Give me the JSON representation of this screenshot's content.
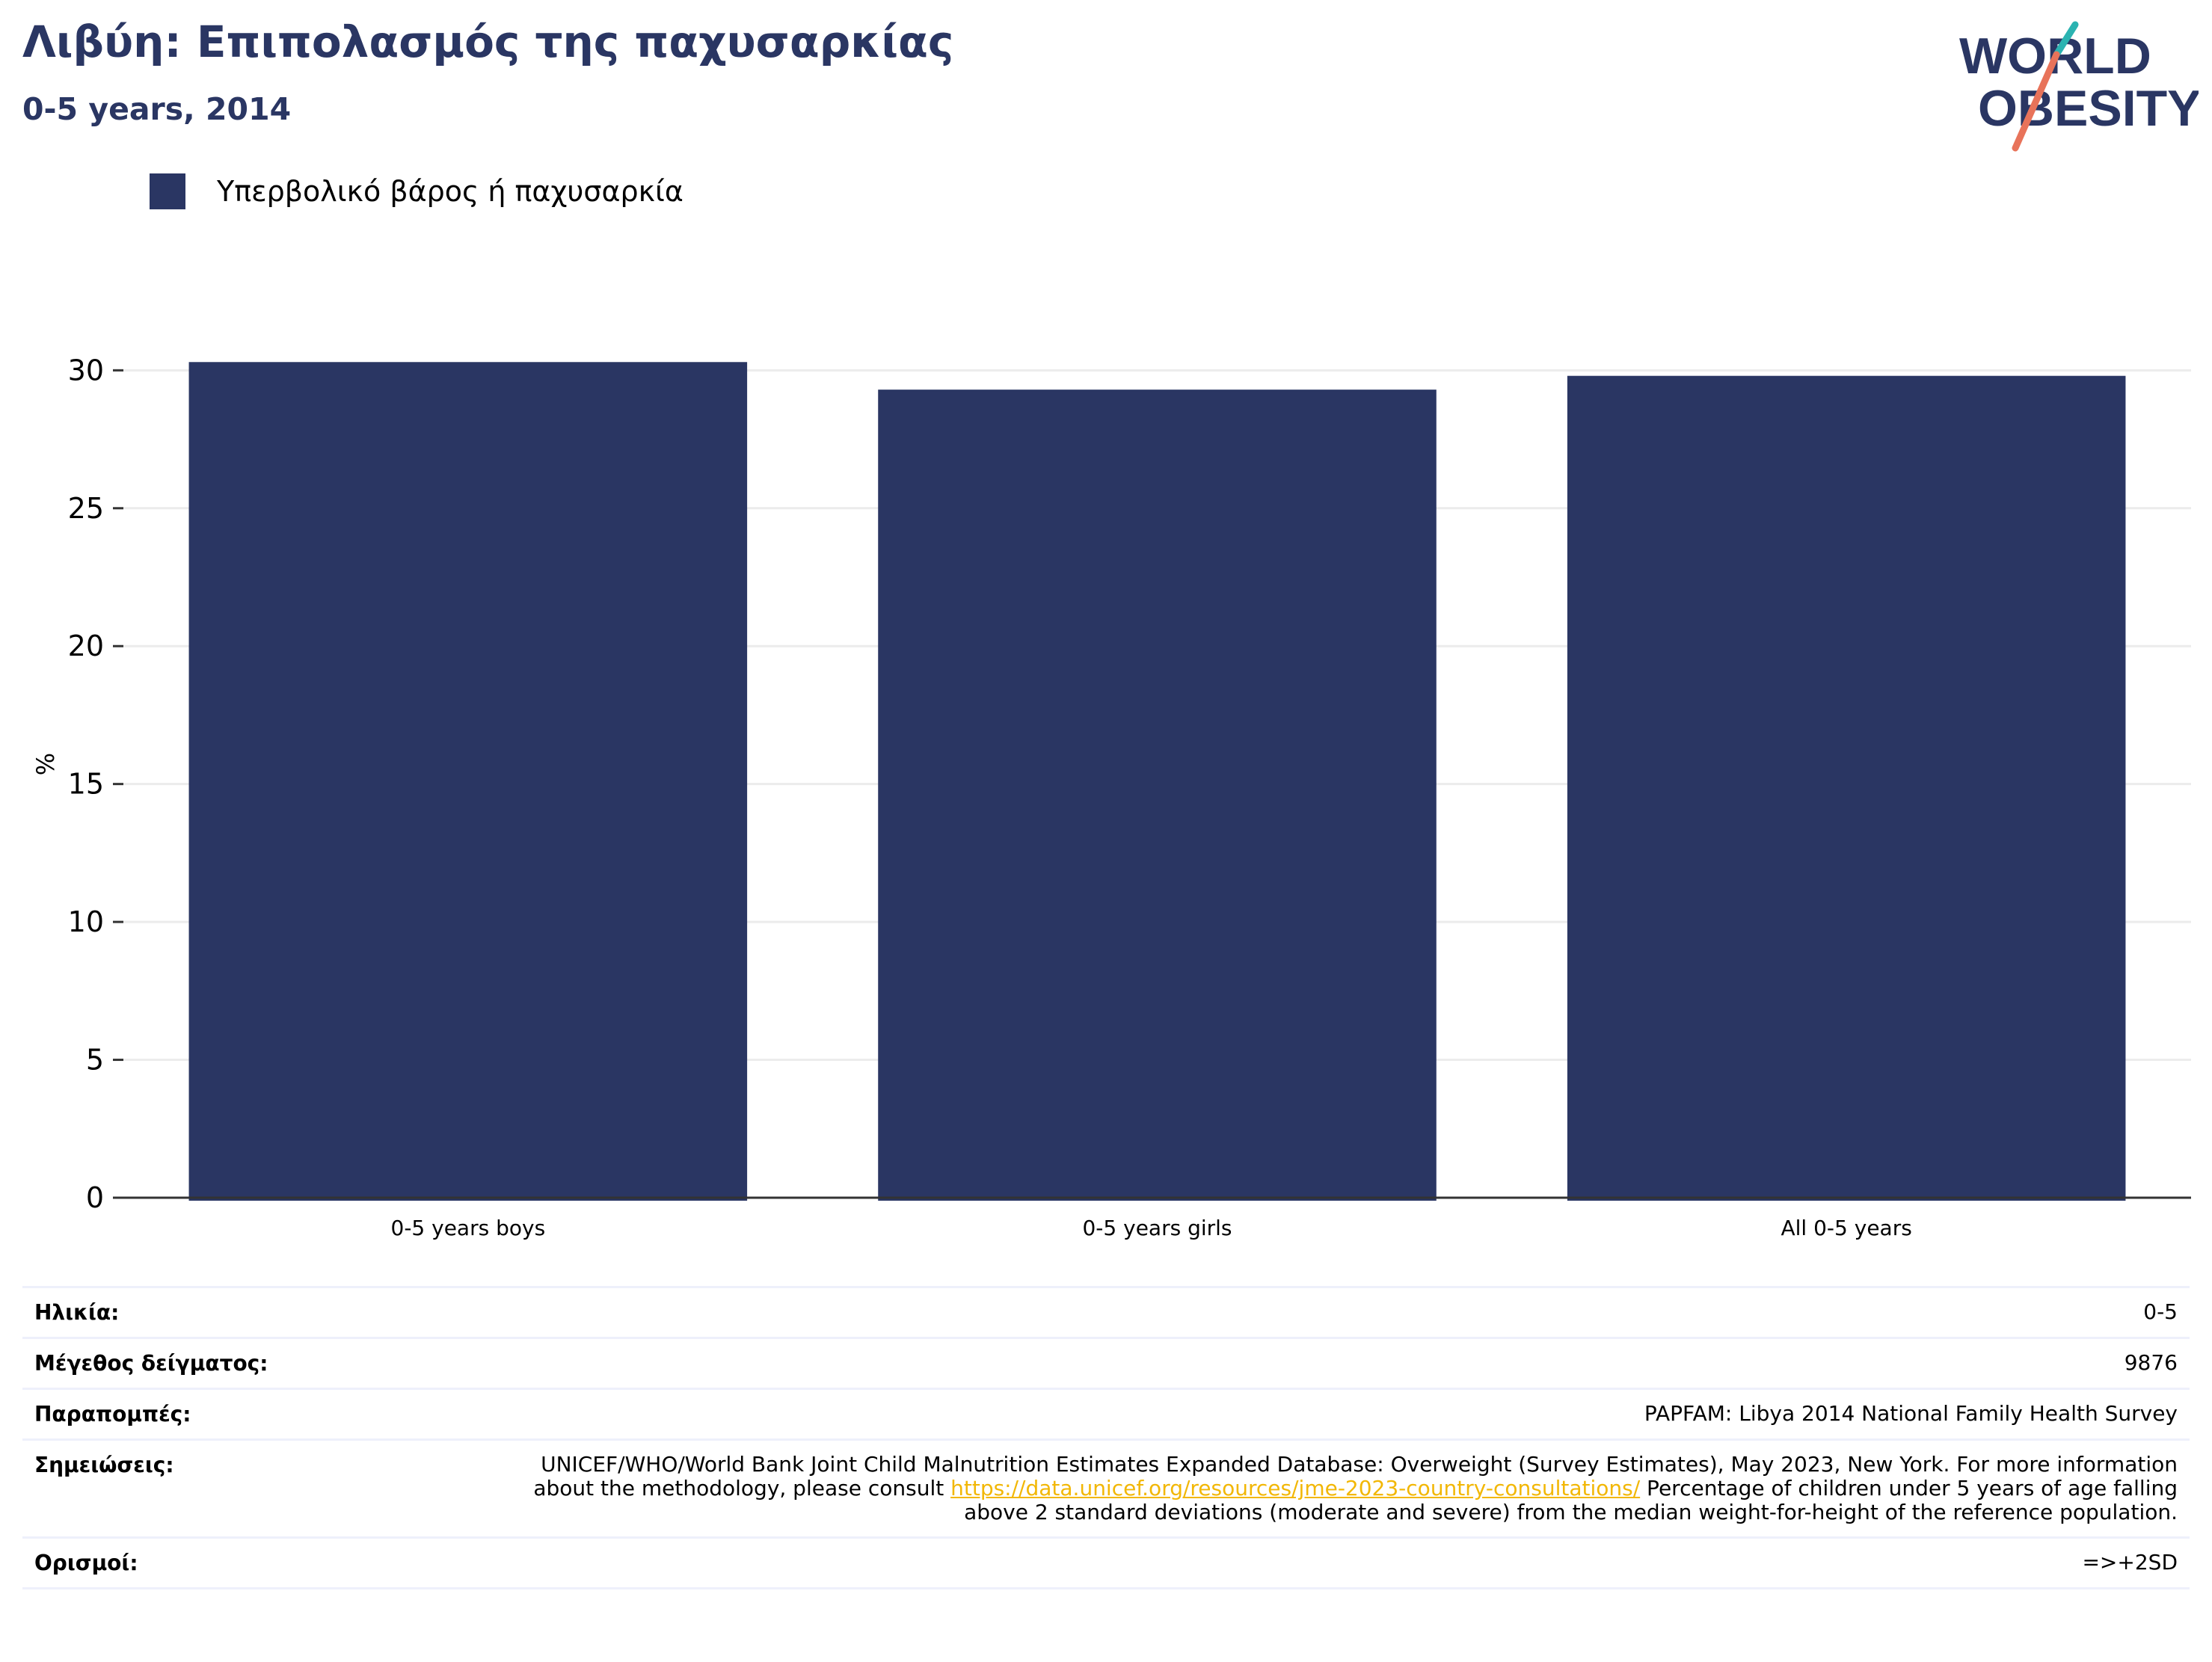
{
  "header": {
    "title": "Λιβύη: Επιπολασμός της παχυσαρκίας",
    "subtitle": "0-5 years, 2014"
  },
  "logo": {
    "line1": "WORLD",
    "line2": "OBESITY",
    "colors": {
      "navy": "#2a3663",
      "teal": "#2bb3b1",
      "coral": "#e8735a"
    }
  },
  "chart_data": {
    "type": "bar",
    "categories": [
      "0-5 years boys",
      "0-5 years girls",
      "All 0-5 years"
    ],
    "series": [
      {
        "name": "Υπερβολικό βάρος ή παχυσαρκία",
        "values": [
          30.3,
          29.3,
          29.8
        ],
        "color": "#2a3663"
      }
    ],
    "ylabel": "%",
    "ylim": [
      0,
      31.5
    ],
    "yticks": [
      0,
      5,
      10,
      15,
      20,
      25,
      30
    ],
    "grid": true,
    "legend_position": "top-left"
  },
  "info": {
    "age_label": "Ηλικία:",
    "age_value": "0-5",
    "sample_label": "Μέγεθος δείγματος:",
    "sample_value": "9876",
    "refs_label": "Παραπομπές:",
    "refs_value": "PAPFAM: Libya 2014 National Family Health Survey",
    "notes_label": "Σημειώσεις:",
    "notes_before": "UNICEF/WHO/World Bank Joint Child Malnutrition Estimates Expanded Database: Overweight (Survey Estimates), May 2023, New York. For more information about the methodology, please consult ",
    "notes_link": "https://data.unicef.org/resources/jme-2023-country-consultations/",
    "notes_after": " Percentage of children under 5 years of age falling above 2 standard deviations (moderate and severe) from the median weight-for-height of the reference population.",
    "defs_label": "Ορισμοί:",
    "defs_value": "=>+2SD"
  }
}
